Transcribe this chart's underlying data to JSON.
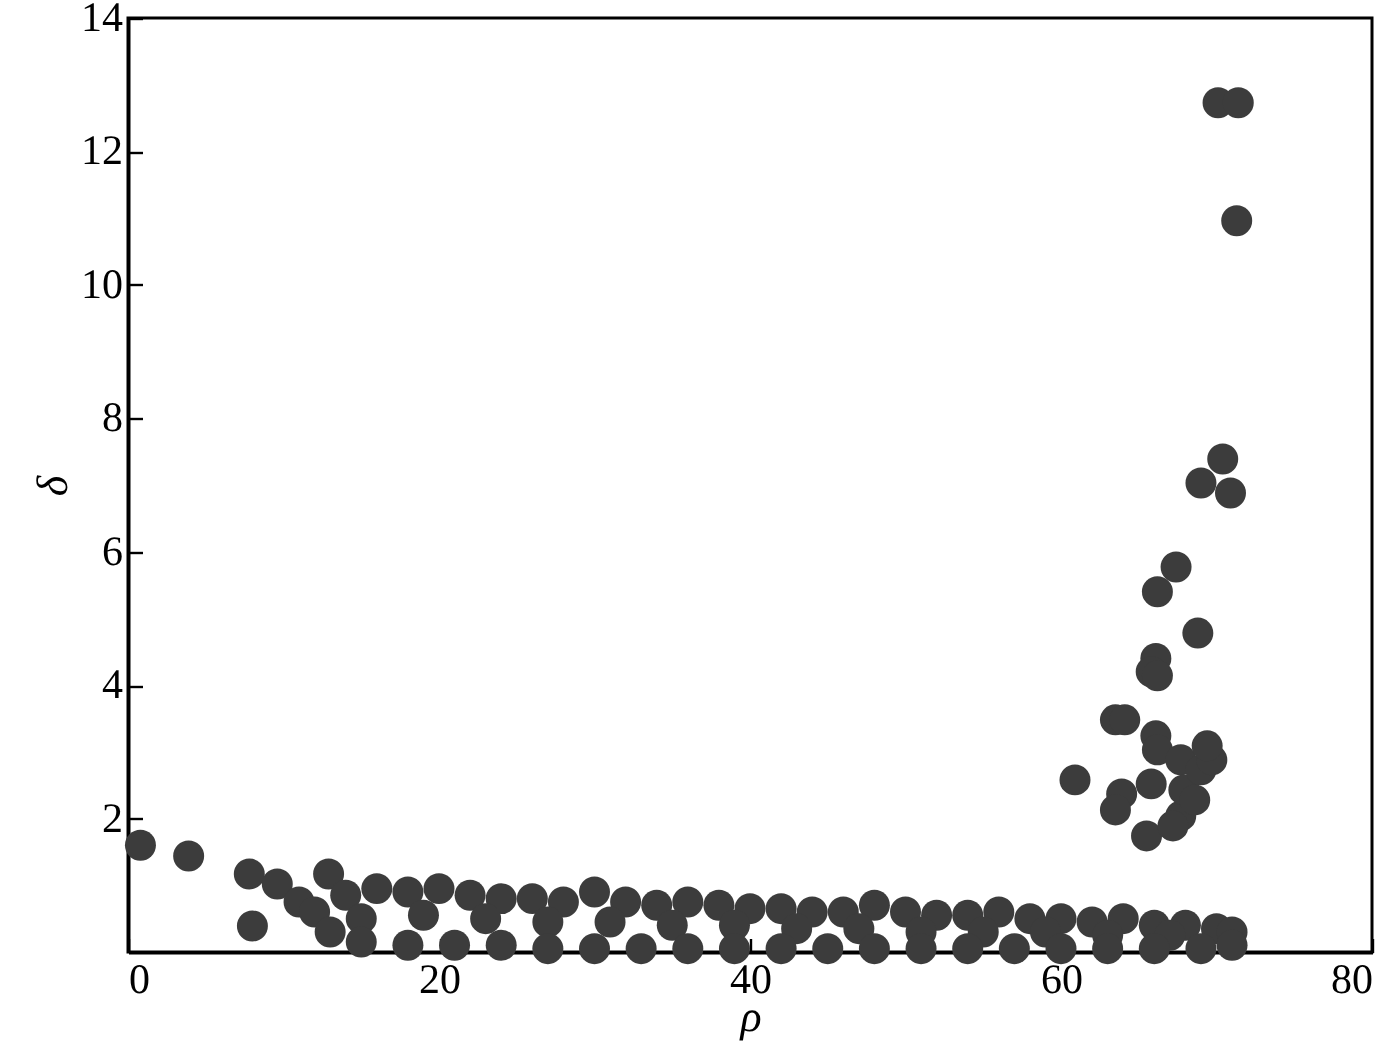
{
  "chart_data": {
    "type": "scatter",
    "xlabel": "ρ",
    "ylabel": "δ",
    "xlim": [
      0,
      80
    ],
    "ylim": [
      0,
      14
    ],
    "xticks": [
      0,
      20,
      40,
      60,
      80
    ],
    "yticks": [
      2,
      4,
      6,
      8,
      10,
      12,
      14
    ],
    "grid": false,
    "marker": "circle",
    "series": [
      {
        "color": "#3c3c3c",
        "x": [
          0.8,
          3.9,
          7.8,
          8.0,
          9.6,
          12.9,
          11,
          12,
          13,
          14,
          16,
          18,
          20,
          22,
          24,
          26,
          28,
          30,
          32,
          34,
          36,
          38,
          40,
          42,
          44,
          46,
          48,
          50,
          52,
          54,
          56,
          58,
          60,
          62,
          64,
          66,
          68,
          70,
          71,
          15,
          19,
          23,
          27,
          31,
          35,
          39,
          43,
          47,
          51,
          55,
          59,
          63,
          67,
          15,
          18,
          21,
          24,
          27,
          30,
          33,
          36,
          39,
          42,
          45,
          48,
          51,
          54,
          57,
          60,
          63,
          66,
          69,
          71,
          70.1,
          71.4,
          71.3,
          70.4,
          69.0,
          70.9,
          67.4,
          68.8,
          66.2,
          66.1,
          65.8,
          60.9,
          63.5,
          64.1,
          63.9,
          63.5,
          65.8,
          65.5,
          66.2,
          66.1,
          66.2,
          67.7,
          67.7,
          67.9,
          69.0,
          69.7,
          69.4,
          68.6,
          67.2
        ],
        "values": [
          1.6,
          1.44,
          1.17,
          0.39,
          1.02,
          1.17,
          0.75,
          0.6,
          0.3,
          0.85,
          0.95,
          0.9,
          0.95,
          0.85,
          0.8,
          0.8,
          0.75,
          0.9,
          0.75,
          0.7,
          0.75,
          0.7,
          0.65,
          0.65,
          0.6,
          0.6,
          0.7,
          0.6,
          0.55,
          0.55,
          0.6,
          0.5,
          0.5,
          0.45,
          0.5,
          0.4,
          0.4,
          0.35,
          0.3,
          0.5,
          0.55,
          0.5,
          0.45,
          0.45,
          0.4,
          0.4,
          0.35,
          0.35,
          0.3,
          0.3,
          0.3,
          0.25,
          0.25,
          0.15,
          0.1,
          0.1,
          0.1,
          0.05,
          0.05,
          0.05,
          0.05,
          0.05,
          0.05,
          0.05,
          0.05,
          0.05,
          0.05,
          0.05,
          0.05,
          0.05,
          0.05,
          0.05,
          0.1,
          12.73,
          12.73,
          10.96,
          7.39,
          7.03,
          6.88,
          5.77,
          4.78,
          5.4,
          4.4,
          4.2,
          2.58,
          3.48,
          3.48,
          2.37,
          2.13,
          2.52,
          1.74,
          4.14,
          3.24,
          3.03,
          2.88,
          2.04,
          2.43,
          2.73,
          2.88,
          3.09,
          2.28,
          1.89
        ]
      }
    ]
  }
}
